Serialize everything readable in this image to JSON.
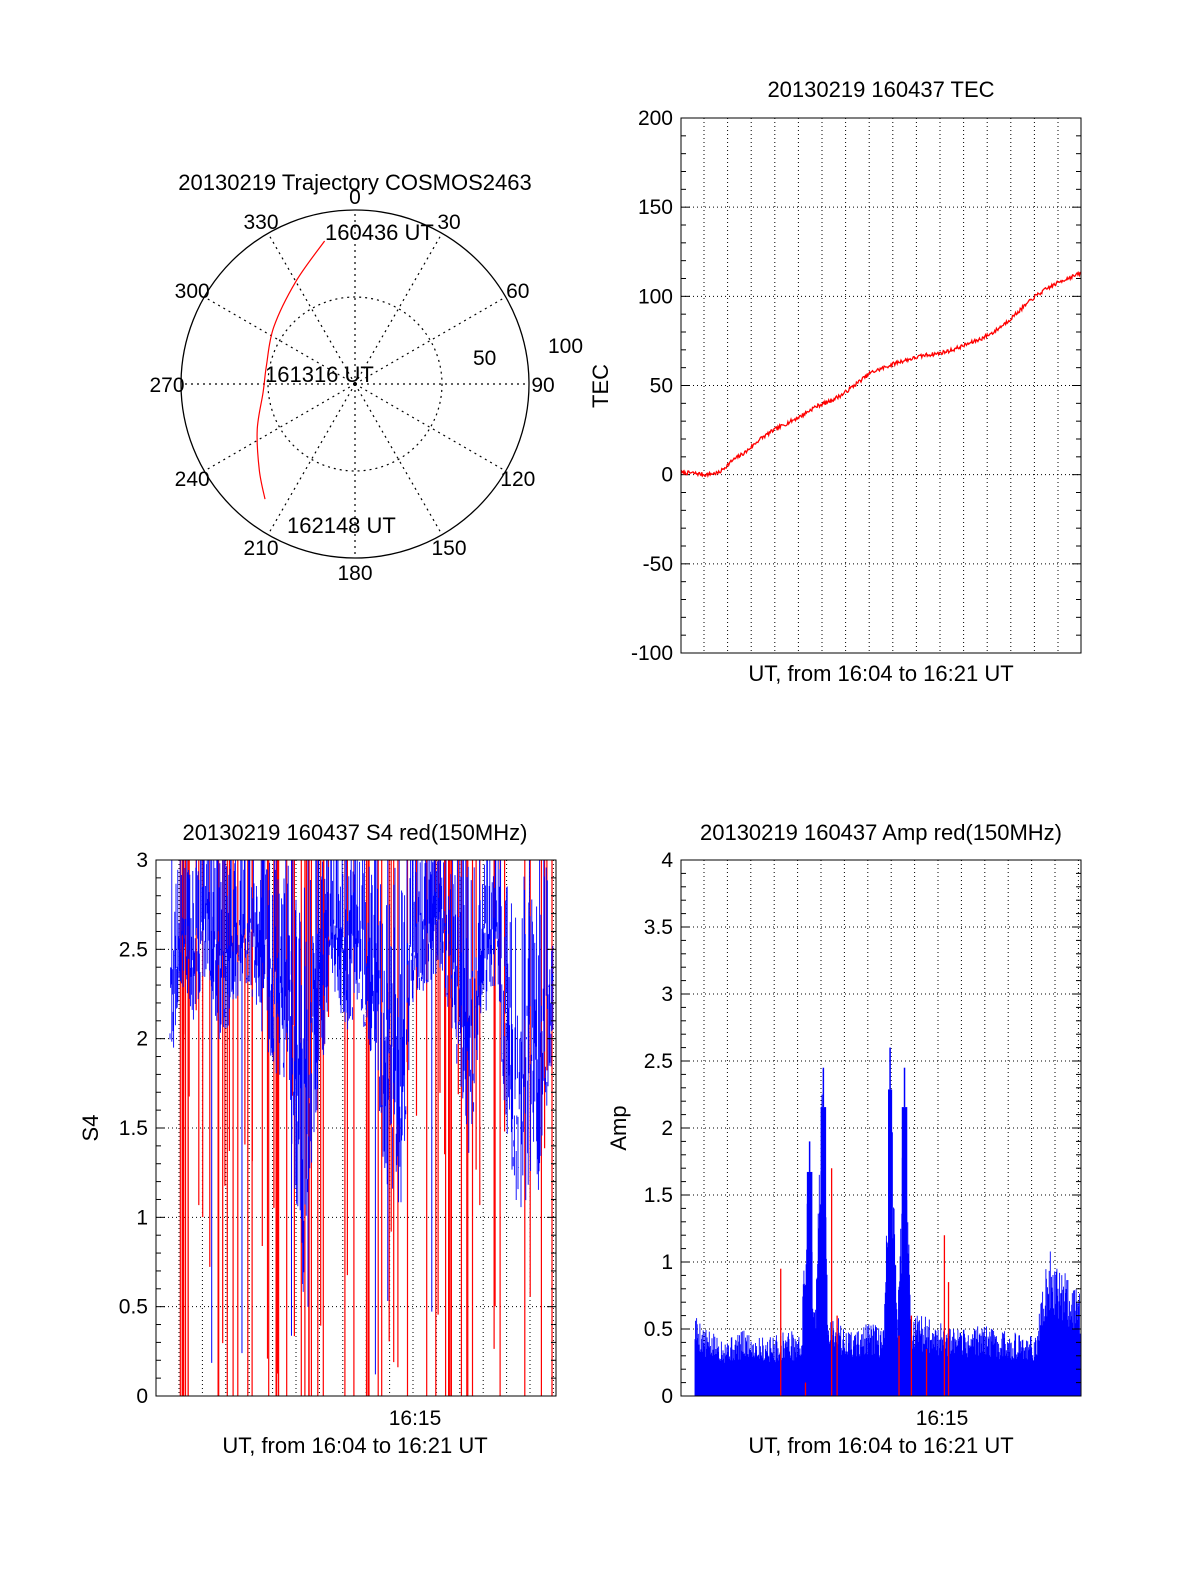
{
  "colors": {
    "red": "#ff0000",
    "blue": "#0000ff",
    "axis": "#000000",
    "grid": "#000000"
  },
  "chart_data": [
    {
      "id": "polar",
      "type": "polar-trajectory",
      "title": "20130219 Trajectory COSMOS2463",
      "azimuth_labels": [
        {
          "az": 0,
          "text": "0"
        },
        {
          "az": 30,
          "text": "30"
        },
        {
          "az": 60,
          "text": "60"
        },
        {
          "az": 90,
          "text": "90"
        },
        {
          "az": 120,
          "text": "120"
        },
        {
          "az": 150,
          "text": "150"
        },
        {
          "az": 180,
          "text": "180"
        },
        {
          "az": 210,
          "text": "210"
        },
        {
          "az": 240,
          "text": "240"
        },
        {
          "az": 270,
          "text": "270"
        },
        {
          "az": 300,
          "text": "300"
        },
        {
          "az": 330,
          "text": "330"
        }
      ],
      "radial_labels": [
        {
          "text": "50"
        },
        {
          "text": "100"
        }
      ],
      "zenith_max": 100,
      "grid": true,
      "trajectory": [
        {
          "az": 348,
          "zen": 84
        },
        {
          "az": 330,
          "zen": 68
        },
        {
          "az": 305,
          "zen": 57
        },
        {
          "az": 282,
          "zen": 52
        },
        {
          "az": 265,
          "zen": 53
        },
        {
          "az": 245,
          "zen": 62
        },
        {
          "az": 228,
          "zen": 74
        },
        {
          "az": 218,
          "zen": 84
        }
      ],
      "annotations": [
        {
          "text": "160436 UT",
          "az": 348,
          "zen": 84
        },
        {
          "text": "161316 UT",
          "az": 265,
          "zen": 53
        },
        {
          "text": "162148 UT",
          "az": 218,
          "zen": 84
        }
      ]
    },
    {
      "id": "tec",
      "type": "line",
      "title": "20130219 160437 TEC",
      "xlabel": "UT, from 16:04 to 16:21 UT",
      "ylabel": "TEC",
      "xlim": [
        16.0725,
        16.3633
      ],
      "ylim": [
        -100,
        200
      ],
      "yticks": [
        "-100",
        "-50",
        "0",
        "50",
        "100",
        "150",
        "200"
      ],
      "grid": true,
      "series": [
        {
          "color": "red",
          "x": [
            16.0725,
            16.08,
            16.09,
            16.1,
            16.11,
            16.12,
            16.13,
            16.14,
            16.15,
            16.16,
            16.17,
            16.18,
            16.19,
            16.2,
            16.21,
            16.22,
            16.23,
            16.24,
            16.25,
            16.26,
            16.27,
            16.28,
            16.29,
            16.3,
            16.31,
            16.32,
            16.33,
            16.34,
            16.35,
            16.3633
          ],
          "y": [
            1,
            1,
            0,
            1,
            8,
            13,
            20,
            25,
            29,
            33,
            38,
            41,
            45,
            51,
            57,
            60,
            63,
            65,
            67,
            68,
            70,
            73,
            76,
            80,
            86,
            93,
            100,
            105,
            109,
            113
          ]
        }
      ]
    },
    {
      "id": "s4",
      "type": "line",
      "title": "20130219 160437 S4 red(150MHz)",
      "xlabel": "UT, from 16:04 to 16:21 UT",
      "ylabel": "S4",
      "xlim": [
        16.0725,
        16.3633
      ],
      "ylim": [
        0,
        3
      ],
      "yticks": [
        "0",
        "0.5",
        "1",
        "1.5",
        "2",
        "2.5",
        "3"
      ],
      "xticks": [
        {
          "x": 16.25,
          "text": "16:15"
        }
      ],
      "grid": true,
      "series": [
        {
          "color": "red",
          "band": {
            "low": 0,
            "high": 3
          }
        },
        {
          "color": "blue",
          "band_profile": {
            "x": [
              16.0725,
              16.08,
              16.09,
              16.1,
              16.11,
              16.12,
              16.13,
              16.14,
              16.15,
              16.16,
              16.17,
              16.18,
              16.19,
              16.2,
              16.21,
              16.22,
              16.23,
              16.24,
              16.25,
              16.26,
              16.27,
              16.28,
              16.29,
              16.3,
              16.31,
              16.32,
              16.33,
              16.34,
              16.35,
              16.3633
            ],
            "low": [
              1.0,
              1.5,
              2.3,
              2.1,
              2.4,
              1.9,
              2.2,
              2.3,
              2.0,
              1.8,
              1.5,
              0.5,
              1.6,
              2.3,
              2.0,
              2.2,
              1.8,
              1.1,
              1.0,
              2.2,
              2.3,
              2.4,
              1.9,
              1.3,
              2.1,
              2.3,
              1.1,
              0.95,
              1.1,
              2.0
            ],
            "high": [
              3,
              3,
              3,
              3,
              3,
              3,
              3,
              3,
              3,
              3,
              3,
              3,
              3,
              3,
              3,
              3,
              3,
              3,
              3,
              3,
              3,
              3,
              3,
              3,
              3,
              3,
              3,
              3,
              3,
              3
            ]
          }
        }
      ]
    },
    {
      "id": "amp",
      "type": "line",
      "title": "20130219 160437 Amp red(150MHz)",
      "xlabel": "UT, from 16:04 to 16:21 UT",
      "ylabel": "Amp",
      "xlim": [
        16.0725,
        16.3633
      ],
      "ylim": [
        0,
        4
      ],
      "yticks": [
        "0",
        "0.5",
        "1",
        "1.5",
        "2",
        "2.5",
        "3",
        "3.5",
        "4"
      ],
      "xticks": [
        {
          "x": 16.25,
          "text": "16:15"
        }
      ],
      "grid": true,
      "series": [
        {
          "color": "blue",
          "envelope": {
            "x": [
              16.0725,
              16.08,
              16.09,
              16.1,
              16.11,
              16.12,
              16.13,
              16.14,
              16.15,
              16.16,
              16.165,
              16.17,
              16.175,
              16.18,
              16.185,
              16.19,
              16.2,
              16.21,
              16.22,
              16.225,
              16.23,
              16.235,
              16.24,
              16.25,
              16.26,
              16.27,
              16.28,
              16.29,
              16.3,
              16.31,
              16.32,
              16.33,
              16.34,
              16.35,
              16.3633
            ],
            "high": [
              0.95,
              0.7,
              0.5,
              0.45,
              0.45,
              0.5,
              0.45,
              0.45,
              0.5,
              0.45,
              1.9,
              0.6,
              2.45,
              0.5,
              0.7,
              0.5,
              0.5,
              0.55,
              0.5,
              2.6,
              0.6,
              2.45,
              0.6,
              0.6,
              0.55,
              0.5,
              0.5,
              0.55,
              0.5,
              0.5,
              0.45,
              0.45,
              1.1,
              1.0,
              0.8
            ]
          }
        },
        {
          "color": "red",
          "spikes": [
            {
              "x": 16.145,
              "y": 0.95
            },
            {
              "x": 16.163,
              "y": 0.1
            },
            {
              "x": 16.182,
              "y": 1.7
            },
            {
              "x": 16.186,
              "y": 0.6
            },
            {
              "x": 16.231,
              "y": 0.45
            },
            {
              "x": 16.24,
              "y": 0.6
            },
            {
              "x": 16.251,
              "y": 0.35
            },
            {
              "x": 16.264,
              "y": 1.2
            },
            {
              "x": 16.267,
              "y": 0.85
            }
          ]
        }
      ]
    }
  ]
}
